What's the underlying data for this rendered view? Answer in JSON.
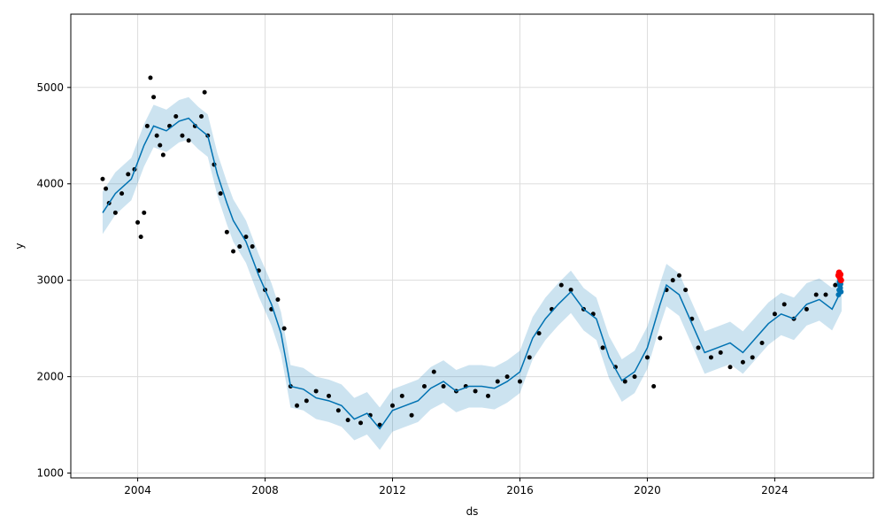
{
  "chart_data": {
    "type": "line",
    "title": "",
    "xlabel": "ds",
    "ylabel": "y",
    "xlim": [
      2001.9,
      2027.1
    ],
    "ylim": [
      950,
      5760
    ],
    "x_ticks": [
      2004,
      2008,
      2012,
      2016,
      2020,
      2024
    ],
    "x_tick_labels": [
      "2004",
      "2008",
      "2012",
      "2016",
      "2020",
      "2024"
    ],
    "y_ticks": [
      1000,
      2000,
      3000,
      4000,
      5000
    ],
    "y_tick_labels": [
      "1000",
      "2000",
      "3000",
      "4000",
      "5000"
    ],
    "grid": true,
    "legend": "none",
    "series": [
      {
        "role": "observed",
        "style": "scatter",
        "color": "#000000",
        "points": [
          [
            2002.9,
            4050
          ],
          [
            2003.0,
            3950
          ],
          [
            2003.1,
            3800
          ],
          [
            2003.3,
            3700
          ],
          [
            2003.5,
            3900
          ],
          [
            2003.7,
            4100
          ],
          [
            2003.9,
            4150
          ],
          [
            2004.0,
            3600
          ],
          [
            2004.1,
            3450
          ],
          [
            2004.2,
            3700
          ],
          [
            2004.3,
            4600
          ],
          [
            2004.4,
            5100
          ],
          [
            2004.5,
            4900
          ],
          [
            2004.6,
            4500
          ],
          [
            2004.7,
            4400
          ],
          [
            2004.8,
            4300
          ],
          [
            2005.0,
            4600
          ],
          [
            2005.2,
            4700
          ],
          [
            2005.4,
            4500
          ],
          [
            2005.6,
            4450
          ],
          [
            2005.8,
            4600
          ],
          [
            2006.0,
            4700
          ],
          [
            2006.1,
            4950
          ],
          [
            2006.2,
            4500
          ],
          [
            2006.4,
            4200
          ],
          [
            2006.6,
            3900
          ],
          [
            2006.8,
            3500
          ],
          [
            2007.0,
            3300
          ],
          [
            2007.2,
            3350
          ],
          [
            2007.4,
            3450
          ],
          [
            2007.6,
            3350
          ],
          [
            2007.8,
            3100
          ],
          [
            2008.0,
            2900
          ],
          [
            2008.2,
            2700
          ],
          [
            2008.4,
            2800
          ],
          [
            2008.6,
            2500
          ],
          [
            2008.8,
            1900
          ],
          [
            2009.0,
            1700
          ],
          [
            2009.3,
            1750
          ],
          [
            2009.6,
            1850
          ],
          [
            2010.0,
            1800
          ],
          [
            2010.3,
            1650
          ],
          [
            2010.6,
            1550
          ],
          [
            2011.0,
            1520
          ],
          [
            2011.3,
            1600
          ],
          [
            2011.6,
            1500
          ],
          [
            2012.0,
            1700
          ],
          [
            2012.3,
            1800
          ],
          [
            2012.6,
            1600
          ],
          [
            2013.0,
            1900
          ],
          [
            2013.3,
            2050
          ],
          [
            2013.6,
            1900
          ],
          [
            2014.0,
            1850
          ],
          [
            2014.3,
            1900
          ],
          [
            2014.6,
            1850
          ],
          [
            2015.0,
            1800
          ],
          [
            2015.3,
            1950
          ],
          [
            2015.6,
            2000
          ],
          [
            2016.0,
            1950
          ],
          [
            2016.3,
            2200
          ],
          [
            2016.6,
            2450
          ],
          [
            2017.0,
            2700
          ],
          [
            2017.3,
            2950
          ],
          [
            2017.6,
            2900
          ],
          [
            2018.0,
            2700
          ],
          [
            2018.3,
            2650
          ],
          [
            2018.6,
            2300
          ],
          [
            2019.0,
            2100
          ],
          [
            2019.3,
            1950
          ],
          [
            2019.6,
            2000
          ],
          [
            2020.0,
            2200
          ],
          [
            2020.2,
            1900
          ],
          [
            2020.4,
            2400
          ],
          [
            2020.6,
            2900
          ],
          [
            2020.8,
            3000
          ],
          [
            2021.0,
            3050
          ],
          [
            2021.2,
            2900
          ],
          [
            2021.4,
            2600
          ],
          [
            2021.6,
            2300
          ],
          [
            2022.0,
            2200
          ],
          [
            2022.3,
            2250
          ],
          [
            2022.6,
            2100
          ],
          [
            2023.0,
            2150
          ],
          [
            2023.3,
            2200
          ],
          [
            2023.6,
            2350
          ],
          [
            2024.0,
            2650
          ],
          [
            2024.3,
            2750
          ],
          [
            2024.6,
            2600
          ],
          [
            2025.0,
            2700
          ],
          [
            2025.3,
            2850
          ],
          [
            2025.6,
            2850
          ],
          [
            2025.9,
            2950
          ]
        ]
      },
      {
        "role": "forecast",
        "style": "line",
        "color": "#0072B2",
        "points": [
          [
            2002.9,
            3700
          ],
          [
            2003.3,
            3900
          ],
          [
            2003.8,
            4050
          ],
          [
            2004.2,
            4400
          ],
          [
            2004.5,
            4600
          ],
          [
            2004.9,
            4550
          ],
          [
            2005.3,
            4650
          ],
          [
            2005.6,
            4680
          ],
          [
            2005.9,
            4580
          ],
          [
            2006.2,
            4500
          ],
          [
            2006.5,
            4100
          ],
          [
            2006.8,
            3800
          ],
          [
            2007.0,
            3620
          ],
          [
            2007.4,
            3400
          ],
          [
            2007.8,
            3050
          ],
          [
            2008.2,
            2750
          ],
          [
            2008.5,
            2450
          ],
          [
            2008.8,
            1900
          ],
          [
            2009.2,
            1870
          ],
          [
            2009.6,
            1780
          ],
          [
            2010.0,
            1750
          ],
          [
            2010.4,
            1700
          ],
          [
            2010.8,
            1560
          ],
          [
            2011.2,
            1620
          ],
          [
            2011.6,
            1460
          ],
          [
            2012.0,
            1650
          ],
          [
            2012.4,
            1700
          ],
          [
            2012.8,
            1750
          ],
          [
            2013.2,
            1880
          ],
          [
            2013.6,
            1950
          ],
          [
            2014.0,
            1850
          ],
          [
            2014.4,
            1900
          ],
          [
            2014.8,
            1900
          ],
          [
            2015.2,
            1880
          ],
          [
            2015.6,
            1950
          ],
          [
            2016.0,
            2050
          ],
          [
            2016.4,
            2400
          ],
          [
            2016.8,
            2600
          ],
          [
            2017.2,
            2750
          ],
          [
            2017.6,
            2880
          ],
          [
            2018.0,
            2700
          ],
          [
            2018.4,
            2600
          ],
          [
            2018.8,
            2200
          ],
          [
            2019.2,
            1960
          ],
          [
            2019.6,
            2050
          ],
          [
            2020.0,
            2300
          ],
          [
            2020.4,
            2750
          ],
          [
            2020.6,
            2950
          ],
          [
            2021.0,
            2850
          ],
          [
            2021.4,
            2550
          ],
          [
            2021.8,
            2250
          ],
          [
            2022.2,
            2300
          ],
          [
            2022.6,
            2350
          ],
          [
            2023.0,
            2250
          ],
          [
            2023.4,
            2400
          ],
          [
            2023.8,
            2550
          ],
          [
            2024.2,
            2650
          ],
          [
            2024.6,
            2600
          ],
          [
            2025.0,
            2750
          ],
          [
            2025.4,
            2800
          ],
          [
            2025.8,
            2700
          ],
          [
            2026.1,
            2900
          ]
        ]
      },
      {
        "role": "uncertainty-interval",
        "style": "band",
        "color": "#0072B2",
        "width": 220
      },
      {
        "role": "future-forecast",
        "style": "scatter",
        "color": "#0072B2",
        "points": [
          [
            2026.0,
            2850
          ],
          [
            2026.02,
            2900
          ],
          [
            2026.04,
            2950
          ],
          [
            2026.06,
            2920
          ],
          [
            2026.08,
            2880
          ],
          [
            2026.05,
            3000
          ],
          [
            2026.03,
            2980
          ],
          [
            2026.07,
            2960
          ]
        ]
      },
      {
        "role": "recent-actuals",
        "style": "scatter",
        "color": "#FF0000",
        "points": [
          [
            2026.0,
            3050
          ],
          [
            2026.02,
            3080
          ],
          [
            2026.04,
            3030
          ],
          [
            2026.06,
            3060
          ],
          [
            2026.08,
            3000
          ]
        ]
      }
    ]
  }
}
